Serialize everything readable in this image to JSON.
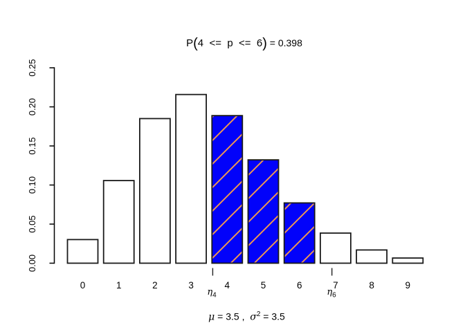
{
  "title": {
    "prefix": "P",
    "open_paren": "(",
    "body": "4  <=  p  <=  6",
    "close_paren": ")",
    "result": " = 0.398"
  },
  "footer": {
    "mu": "μ",
    "eq1": " = 3.5 ,  ",
    "sigma": "σ",
    "sigma_exp": "2",
    "eq2": " = 3.5"
  },
  "marker_labels": {
    "eta": "η",
    "eta4_sub": "4",
    "eta6_sub": "6"
  },
  "chart_data": {
    "type": "bar",
    "title": "P(4 <= p <= 6) = 0.398",
    "xlabel": "mu = 3.5 , sigma^2 = 3.5",
    "ylabel": "",
    "categories": [
      "0",
      "1",
      "2",
      "3",
      "4",
      "5",
      "6",
      "7",
      "8",
      "9"
    ],
    "values": [
      0.0302,
      0.1057,
      0.185,
      0.2158,
      0.1888,
      0.1322,
      0.0771,
      0.0385,
      0.0169,
      0.0066
    ],
    "highlighted_categories": [
      4,
      5,
      6
    ],
    "highlight_probability": 0.398,
    "ylim": [
      0,
      0.25
    ],
    "yticks": [
      0,
      0.05,
      0.1,
      0.15,
      0.2,
      0.25
    ],
    "ytick_labels": [
      "0.00",
      "0.05",
      "0.10",
      "0.15",
      "0.20",
      "0.25"
    ],
    "grid": false,
    "legend": null,
    "bar_fill": "#ffffff",
    "bar_stroke": "#1a1a1a",
    "highlight_fill": "#0202fa",
    "hatch_color": "#ee9752",
    "axis_color": "#000000",
    "markers": [
      {
        "sub": "4",
        "x": 3.6
      },
      {
        "sub": "6",
        "x": 6.9
      }
    ]
  }
}
